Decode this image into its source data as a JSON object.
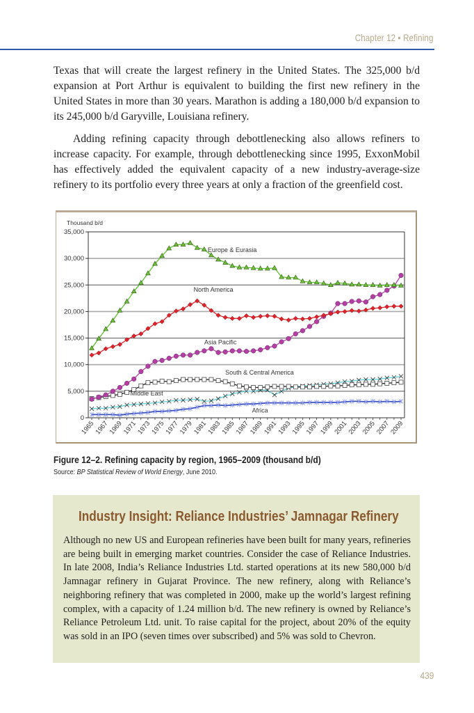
{
  "header": {
    "running_head": "Chapter 12  •  Refining"
  },
  "body": {
    "paragraph_1": "Texas that will create the largest refinery in the United States. The 325,000 b/d expansion at Port Arthur is equivalent to building the first new refinery in the United States in more than 30 years. Marathon is adding a 180,000 b/d expansion to its 245,000 b/d Garyville, Louisiana refinery.",
    "paragraph_2": "Adding refining capacity through debottlenecking also allows refiners to increase capacity. For example, through debottlenecking since 1995, ExxonMobil has effectively added the equivalent capacity of a new industry-average-size refinery to its portfolio every three years at only a fraction of the greenfield cost."
  },
  "figure": {
    "caption": "Figure 12–2. Refining capacity by region, 1965–2009 (thousand b/d)",
    "source_prefix": "Source: ",
    "source_title": "BP Statistical Review of World Energy",
    "source_suffix": ", June 2010."
  },
  "chart_data": {
    "type": "line",
    "title": "",
    "ylabel": "Thousand b/d",
    "xlabel": "",
    "ylim": [
      0,
      35000
    ],
    "yticks": [
      0,
      5000,
      10000,
      15000,
      20000,
      25000,
      30000,
      35000
    ],
    "ytick_labels": [
      "0",
      "5,000",
      "10,000",
      "15,000",
      "20,000",
      "25,000",
      "30,000",
      "35,000"
    ],
    "grid": "horizontal",
    "legend": "inline labels",
    "x": [
      1965,
      1966,
      1967,
      1968,
      1969,
      1970,
      1971,
      1972,
      1973,
      1974,
      1975,
      1976,
      1977,
      1978,
      1979,
      1980,
      1981,
      1982,
      1983,
      1984,
      1985,
      1986,
      1987,
      1988,
      1989,
      1990,
      1991,
      1992,
      1993,
      1994,
      1995,
      1996,
      1997,
      1998,
      1999,
      2000,
      2001,
      2002,
      2003,
      2004,
      2005,
      2006,
      2007,
      2008,
      2009
    ],
    "xtick_labels": [
      "1965",
      "1967",
      "1969",
      "1971",
      "1973",
      "1975",
      "1977",
      "1979",
      "1981",
      "1983",
      "1985",
      "1987",
      "1989",
      "1991",
      "1993",
      "1995",
      "1997",
      "1999",
      "2001",
      "2003",
      "2005",
      "2007",
      "2009"
    ],
    "series": [
      {
        "name": "Europe & Eurasia",
        "color": "#5cbf2a",
        "marker": "triangle",
        "values": [
          13100,
          14900,
          16700,
          18300,
          20200,
          21900,
          23800,
          25400,
          27200,
          29000,
          30500,
          31900,
          32600,
          32600,
          32900,
          32000,
          31700,
          30600,
          29800,
          29200,
          28600,
          28300,
          28300,
          28200,
          28100,
          28100,
          28200,
          26500,
          26400,
          26400,
          25700,
          25500,
          25500,
          25300,
          25000,
          25400,
          25300,
          25100,
          25100,
          25000,
          25000,
          24900,
          25000,
          25000,
          24900
        ]
      },
      {
        "name": "North America",
        "color": "#e0232b",
        "marker": "diamond",
        "values": [
          11800,
          12200,
          13000,
          13400,
          13800,
          14700,
          15400,
          15800,
          16800,
          17700,
          18100,
          19300,
          20100,
          20500,
          21300,
          22000,
          21200,
          20200,
          19300,
          18900,
          18700,
          18700,
          19200,
          18900,
          19100,
          19200,
          19100,
          18600,
          18400,
          18700,
          18600,
          18700,
          19000,
          19300,
          19600,
          19900,
          20000,
          20200,
          20100,
          20300,
          20600,
          20700,
          20900,
          21000,
          21000
        ]
      },
      {
        "name": "Asia Pacific",
        "color": "#b43fa4",
        "marker": "circle",
        "values": [
          3500,
          3900,
          4300,
          5000,
          5700,
          6500,
          7300,
          8700,
          9700,
          10600,
          10800,
          11200,
          11600,
          11800,
          11800,
          12300,
          12600,
          13000,
          12300,
          12400,
          12600,
          12600,
          12500,
          12600,
          12800,
          13200,
          13500,
          14300,
          14900,
          15800,
          16400,
          17200,
          18100,
          19100,
          19700,
          21500,
          21500,
          21900,
          22000,
          21800,
          22800,
          23200,
          24000,
          24800,
          26800
        ]
      },
      {
        "name": "South & Central America",
        "color": "#222222",
        "marker": "square",
        "values": [
          3600,
          3800,
          4000,
          4200,
          4400,
          4800,
          5300,
          6000,
          6600,
          6700,
          6900,
          6800,
          7000,
          7200,
          7200,
          7200,
          7200,
          7200,
          7000,
          6800,
          6400,
          6000,
          5800,
          5700,
          5700,
          5800,
          5900,
          5900,
          5900,
          5800,
          5800,
          5800,
          5900,
          5900,
          6000,
          6000,
          6100,
          6200,
          6200,
          6300,
          6300,
          6400,
          6500,
          6600,
          6700
        ]
      },
      {
        "name": "Middle East",
        "color": "#5fd1d8",
        "marker": "cross",
        "values": [
          1700,
          1800,
          1800,
          2000,
          2100,
          2400,
          2500,
          2600,
          2700,
          2800,
          3000,
          3100,
          3300,
          3300,
          3400,
          3500,
          3100,
          3200,
          3600,
          4100,
          4500,
          4800,
          5000,
          5000,
          5200,
          5200,
          4300,
          5000,
          5600,
          5800,
          6000,
          6100,
          6200,
          6300,
          6400,
          6600,
          6800,
          6900,
          7100,
          7200,
          7200,
          7300,
          7500,
          7600,
          7800
        ]
      },
      {
        "name": "Africa",
        "color": "#3a4fc1",
        "marker": "asterisk",
        "values": [
          600,
          600,
          600,
          600,
          500,
          700,
          800,
          900,
          1000,
          1200,
          1200,
          1300,
          1400,
          1600,
          1700,
          2000,
          2300,
          2300,
          2400,
          2300,
          2400,
          2500,
          2600,
          2600,
          2700,
          2800,
          2800,
          2800,
          2800,
          2800,
          2800,
          2900,
          2900,
          2900,
          2900,
          2900,
          3000,
          3100,
          3100,
          3000,
          3100,
          3000,
          3100,
          3000,
          3100
        ]
      }
    ],
    "annotations": [
      {
        "text": "Europe & Eurasia",
        "series": "Europe & Eurasia"
      },
      {
        "text": "North America",
        "series": "North America"
      },
      {
        "text": "Asia Pacific",
        "series": "Asia Pacific"
      },
      {
        "text": "South & Central America",
        "series": "South & Central America"
      },
      {
        "text": "Middle East",
        "series": "Middle East"
      },
      {
        "text": "Africa",
        "series": "Africa"
      }
    ]
  },
  "insight": {
    "title": "Industry Insight: Reliance Industries’ Jamnagar Refinery",
    "body": "Although no new US and European refineries have been built for many years, refineries are being built in emerging market countries. Consider the case of Reliance Industries. In late 2008, India’s Reliance Industries Ltd. started operations at its new 580,000 b/d Jamnagar refinery in Gujarat Province. The new refinery, along with Reliance’s neighboring refinery that was completed in 2000, make up the world’s largest refining complex, with a capacity of 1.24 million b/d. The new refinery is owned by Reliance’s Reliance Petroleum Ltd. unit. To raise capital for the project, about 20% of the equity was sold in an IPO (seven times over subscribed) and 5% was sold to Chevron."
  },
  "footer": {
    "page_number": "439"
  }
}
